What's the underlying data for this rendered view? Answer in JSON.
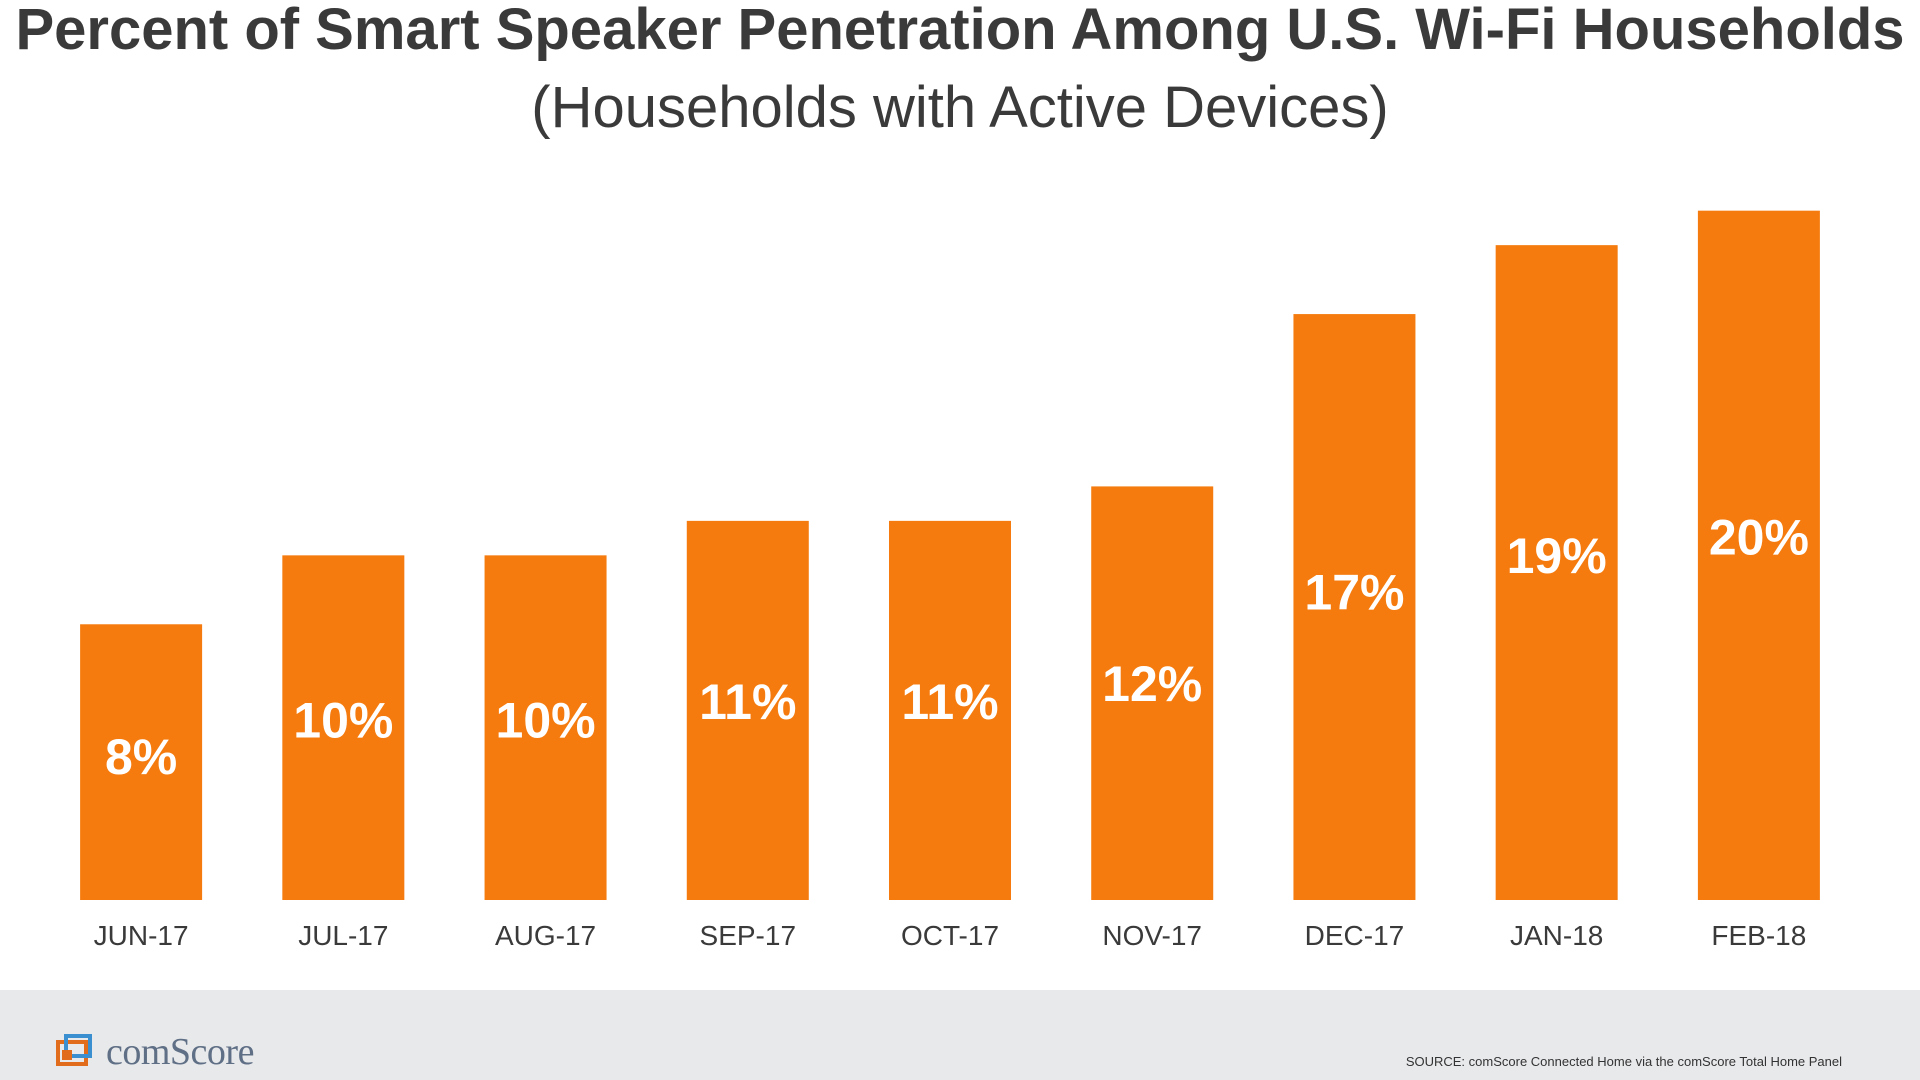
{
  "colors": {
    "bar": "#f57b0e",
    "bar_label": "#ffffff",
    "text": "#3a3a3a",
    "footer_bg": "#e8e9eb",
    "brand": "#5f6f85"
  },
  "brand": {
    "name": "comScore",
    "logo_icon": "comscore-logo-icon"
  },
  "source": "SOURCE: comScore Connected Home via the comScore Total Home Panel",
  "chart_data": {
    "type": "bar",
    "title": "Percent of Smart Speaker Penetration Among U.S. Wi-Fi Households",
    "subtitle": "(Households with Active Devices)",
    "categories": [
      "JUN-17",
      "JUL-17",
      "AUG-17",
      "SEP-17",
      "OCT-17",
      "NOV-17",
      "DEC-17",
      "JAN-18",
      "FEB-18"
    ],
    "values": [
      8,
      10,
      10,
      11,
      11,
      12,
      17,
      19,
      20
    ],
    "data_labels": [
      "8%",
      "10%",
      "10%",
      "11%",
      "11%",
      "12%",
      "17%",
      "19%",
      "20%"
    ],
    "value_suffix": "%",
    "ylim": [
      0,
      20.6
    ],
    "grid": false,
    "legend": "none",
    "xlabel": "",
    "ylabel": ""
  }
}
